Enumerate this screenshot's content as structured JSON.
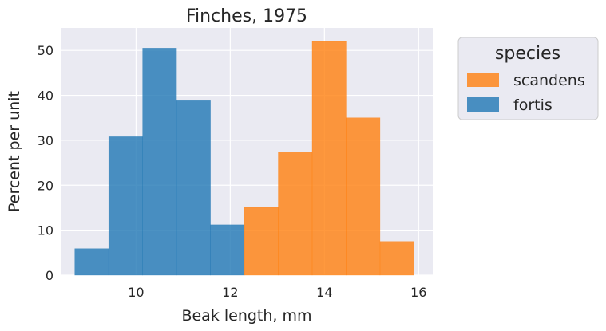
{
  "chart_data": {
    "type": "bar",
    "title": "Finches, 1975",
    "xlabel": "Beak length, mm",
    "ylabel": "Percent per unit",
    "xlim": [
      8.4,
      16.3
    ],
    "ylim": [
      0,
      55
    ],
    "xticks": [
      10,
      12,
      14,
      16
    ],
    "yticks": [
      0,
      10,
      20,
      30,
      40,
      50
    ],
    "grid": true,
    "legend": {
      "title": "species",
      "placement": "outside-right-top"
    },
    "series": [
      {
        "name": "fortis",
        "color": "#1f77b4",
        "bin_edges": [
          8.7,
          9.42,
          10.14,
          10.86,
          11.58,
          12.3
        ],
        "values": [
          5.9,
          30.8,
          50.5,
          38.8,
          11.2
        ]
      },
      {
        "name": "scandens",
        "color": "#ff7f0e",
        "bin_edges": [
          12.3,
          13.02,
          13.74,
          14.46,
          15.18,
          15.9
        ],
        "values": [
          15.1,
          27.4,
          52.0,
          35.0,
          7.5
        ]
      }
    ],
    "legend_order": [
      "scandens",
      "fortis"
    ]
  },
  "style": {
    "plot_background": "#eaeaf2",
    "grid_color": "#ffffff",
    "text_color": "#262626"
  }
}
